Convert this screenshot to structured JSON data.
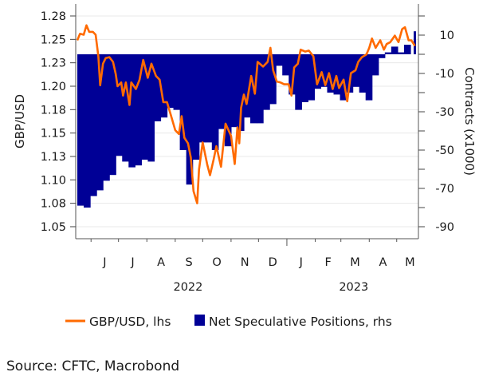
{
  "chart_data": {
    "type": "line+bar",
    "title": "",
    "source": "Source: CFTC, Macrobond",
    "x_axis": {
      "range": [
        "2022-05-17",
        "2023-05-23"
      ],
      "month_labels": [
        "J",
        "J",
        "A",
        "S",
        "O",
        "N",
        "D",
        "J",
        "F",
        "M",
        "A",
        "M"
      ],
      "month_label_dates": [
        "2022-06",
        "2022-07",
        "2022-08",
        "2022-09",
        "2022-10",
        "2022-11",
        "2022-12",
        "2023-01",
        "2023-02",
        "2023-03",
        "2023-04",
        "2023-05"
      ],
      "year_labels": [
        {
          "label": "2022",
          "date": "2022-09-15"
        },
        {
          "label": "2023",
          "date": "2023-03-15"
        }
      ]
    },
    "y_left": {
      "label": "GBP/USD",
      "range": [
        1.04,
        1.285
      ],
      "ticks": [
        1.275,
        1.25,
        1.225,
        1.2,
        1.175,
        1.15,
        1.125,
        1.1,
        1.075,
        1.05
      ],
      "tick_labels": [
        "1.28",
        "1.25",
        "1.23",
        "1.20",
        "1.18",
        "1.15",
        "1.13",
        "1.10",
        "1.08",
        "1.05"
      ],
      "grid": true
    },
    "y_right": {
      "label": "Contracts (x1000)",
      "range": [
        -95,
        27
      ],
      "ticks": [
        10,
        -10,
        -30,
        -50,
        -70,
        -90
      ],
      "tick_labels": [
        "10",
        "-10",
        "-30",
        "-50",
        "-70",
        "-90"
      ],
      "minor_ticks": [
        20,
        0,
        -20,
        -40,
        -60,
        -80
      ]
    },
    "series": [
      {
        "name": "GBP/USD, lhs",
        "type": "line",
        "axis": "left",
        "color": "#ff6a00",
        "points": [
          [
            "2022-05-17",
            1.249
          ],
          [
            "2022-05-20",
            1.256
          ],
          [
            "2022-05-24",
            1.255
          ],
          [
            "2022-05-27",
            1.265
          ],
          [
            "2022-05-30",
            1.258
          ],
          [
            "2022-06-03",
            1.258
          ],
          [
            "2022-06-06",
            1.255
          ],
          [
            "2022-06-09",
            1.232
          ],
          [
            "2022-06-11",
            1.201
          ],
          [
            "2022-06-14",
            1.224
          ],
          [
            "2022-06-17",
            1.23
          ],
          [
            "2022-06-21",
            1.231
          ],
          [
            "2022-06-25",
            1.226
          ],
          [
            "2022-06-28",
            1.213
          ],
          [
            "2022-06-30",
            1.2
          ],
          [
            "2022-07-04",
            1.204
          ],
          [
            "2022-07-06",
            1.19
          ],
          [
            "2022-07-09",
            1.204
          ],
          [
            "2022-07-13",
            1.18
          ],
          [
            "2022-07-15",
            1.204
          ],
          [
            "2022-07-20",
            1.197
          ],
          [
            "2022-07-24",
            1.207
          ],
          [
            "2022-07-28",
            1.228
          ],
          [
            "2022-08-02",
            1.209
          ],
          [
            "2022-08-06",
            1.224
          ],
          [
            "2022-08-11",
            1.211
          ],
          [
            "2022-08-15",
            1.207
          ],
          [
            "2022-08-19",
            1.183
          ],
          [
            "2022-08-23",
            1.183
          ],
          [
            "2022-08-27",
            1.17
          ],
          [
            "2022-09-01",
            1.153
          ],
          [
            "2022-09-05",
            1.149
          ],
          [
            "2022-09-08",
            1.168
          ],
          [
            "2022-09-11",
            1.145
          ],
          [
            "2022-09-15",
            1.139
          ],
          [
            "2022-09-18",
            1.124
          ],
          [
            "2022-09-21",
            1.088
          ],
          [
            "2022-09-25",
            1.075
          ],
          [
            "2022-09-27",
            1.111
          ],
          [
            "2022-10-01",
            1.14
          ],
          [
            "2022-10-06",
            1.116
          ],
          [
            "2022-10-09",
            1.105
          ],
          [
            "2022-10-13",
            1.122
          ],
          [
            "2022-10-16",
            1.136
          ],
          [
            "2022-10-21",
            1.114
          ],
          [
            "2022-10-26",
            1.16
          ],
          [
            "2022-11-01",
            1.147
          ],
          [
            "2022-11-05",
            1.117
          ],
          [
            "2022-11-08",
            1.156
          ],
          [
            "2022-11-10",
            1.139
          ],
          [
            "2022-11-12",
            1.177
          ],
          [
            "2022-11-15",
            1.191
          ],
          [
            "2022-11-18",
            1.181
          ],
          [
            "2022-11-23",
            1.211
          ],
          [
            "2022-11-27",
            1.192
          ],
          [
            "2022-11-30",
            1.226
          ],
          [
            "2022-12-06",
            1.221
          ],
          [
            "2022-12-11",
            1.226
          ],
          [
            "2022-12-14",
            1.241
          ],
          [
            "2022-12-17",
            1.217
          ],
          [
            "2022-12-21",
            1.205
          ],
          [
            "2022-12-25",
            1.204
          ],
          [
            "2022-12-29",
            1.202
          ],
          [
            "2023-01-03",
            1.202
          ],
          [
            "2023-01-06",
            1.19
          ],
          [
            "2023-01-09",
            1.22
          ],
          [
            "2023-01-13",
            1.224
          ],
          [
            "2023-01-16",
            1.239
          ],
          [
            "2023-01-21",
            1.237
          ],
          [
            "2023-01-25",
            1.238
          ],
          [
            "2023-01-30",
            1.232
          ],
          [
            "2023-02-03",
            1.202
          ],
          [
            "2023-02-08",
            1.215
          ],
          [
            "2023-02-12",
            1.201
          ],
          [
            "2023-02-16",
            1.214
          ],
          [
            "2023-02-20",
            1.197
          ],
          [
            "2023-02-24",
            1.211
          ],
          [
            "2023-02-27",
            1.198
          ],
          [
            "2023-03-04",
            1.207
          ],
          [
            "2023-03-08",
            1.184
          ],
          [
            "2023-03-12",
            1.214
          ],
          [
            "2023-03-17",
            1.217
          ],
          [
            "2023-03-20",
            1.226
          ],
          [
            "2023-03-24",
            1.231
          ],
          [
            "2023-03-29",
            1.234
          ],
          [
            "2023-04-01",
            1.241
          ],
          [
            "2023-04-04",
            1.251
          ],
          [
            "2023-04-08",
            1.241
          ],
          [
            "2023-04-13",
            1.249
          ],
          [
            "2023-04-17",
            1.239
          ],
          [
            "2023-04-20",
            1.245
          ],
          [
            "2023-04-24",
            1.247
          ],
          [
            "2023-04-29",
            1.254
          ],
          [
            "2023-05-03",
            1.247
          ],
          [
            "2023-05-07",
            1.261
          ],
          [
            "2023-05-10",
            1.263
          ],
          [
            "2023-05-14",
            1.249
          ],
          [
            "2023-05-17",
            1.249
          ],
          [
            "2023-05-21",
            1.243
          ]
        ]
      },
      {
        "name": "Net Speculative Positions, rhs",
        "type": "bar",
        "axis": "right",
        "color": "#000096",
        "dates": [
          "2022-05-17",
          "2022-05-24",
          "2022-05-31",
          "2022-06-07",
          "2022-06-14",
          "2022-06-21",
          "2022-06-28",
          "2022-07-05",
          "2022-07-12",
          "2022-07-19",
          "2022-07-26",
          "2022-08-02",
          "2022-08-09",
          "2022-08-16",
          "2022-08-23",
          "2022-08-30",
          "2022-09-06",
          "2022-09-13",
          "2022-09-20",
          "2022-09-27",
          "2022-10-04",
          "2022-10-11",
          "2022-10-18",
          "2022-10-25",
          "2022-11-01",
          "2022-11-08",
          "2022-11-15",
          "2022-11-22",
          "2022-11-29",
          "2022-12-06",
          "2022-12-13",
          "2022-12-20",
          "2022-12-27",
          "2023-01-03",
          "2023-01-10",
          "2023-01-17",
          "2023-01-24",
          "2023-01-31",
          "2023-02-07",
          "2023-02-14",
          "2023-02-21",
          "2023-02-28",
          "2023-03-07",
          "2023-03-14",
          "2023-03-21",
          "2023-03-28",
          "2023-04-04",
          "2023-04-11",
          "2023-04-18",
          "2023-04-25",
          "2023-05-02",
          "2023-05-09",
          "2023-05-16"
        ],
        "values": [
          -79,
          -80,
          -74,
          -71,
          -66,
          -63,
          -53,
          -56,
          -59,
          -58,
          -55,
          -56,
          -35,
          -33,
          -28,
          -29,
          -50,
          -68,
          -55,
          -46,
          -46,
          -50,
          -39,
          -48,
          -38,
          -40,
          -33,
          -36,
          -36,
          -29,
          -26,
          -6,
          -11,
          -21,
          -29,
          -25,
          -24,
          -18,
          -17,
          -20,
          -21,
          -24,
          -20,
          -17,
          -20,
          -24,
          -11,
          -2,
          1,
          4,
          1,
          5,
          12
        ]
      }
    ],
    "legend": {
      "placement": "bottom",
      "items": [
        "GBP/USD, lhs",
        "Net Speculative Positions, rhs"
      ]
    }
  }
}
